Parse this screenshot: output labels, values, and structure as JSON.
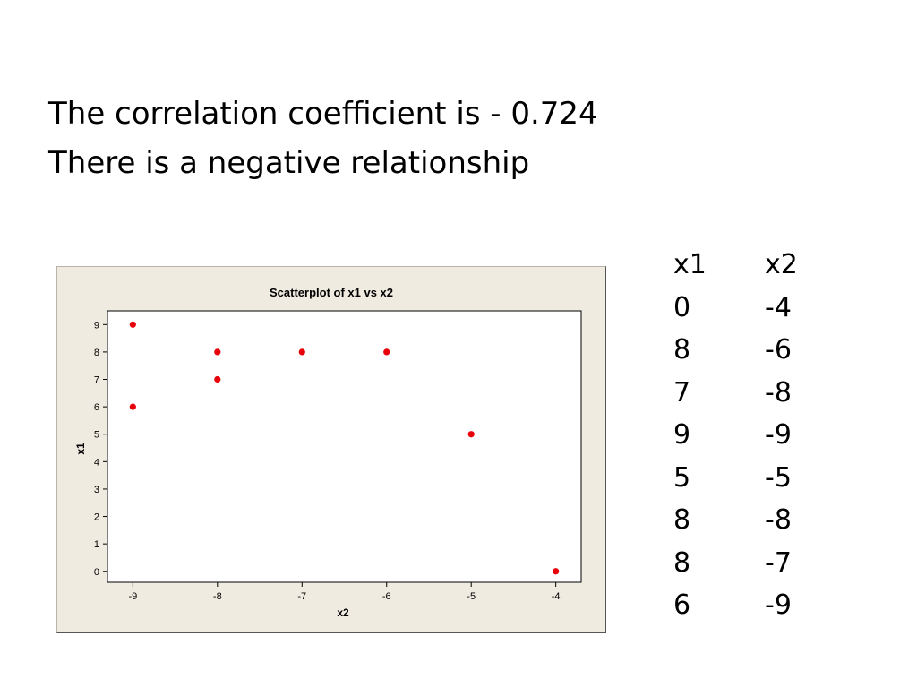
{
  "heading": {
    "line1": "The correlation coefficient is - 0.724",
    "line2": "There is a negative relationship"
  },
  "table": {
    "headers": [
      "x1",
      "x2"
    ],
    "rows": [
      [
        "0",
        "-4"
      ],
      [
        "8",
        "-6"
      ],
      [
        "7",
        "-8"
      ],
      [
        "9",
        "-9"
      ],
      [
        "5",
        "-5"
      ],
      [
        "8",
        "-8"
      ],
      [
        "8",
        "-7"
      ],
      [
        "6",
        "-9"
      ]
    ]
  },
  "chart_data": {
    "type": "scatter",
    "title": "Scatterplot of x1 vs x2",
    "xlabel": "x2",
    "ylabel": "x1",
    "xlim": [
      -9.3,
      -3.7
    ],
    "ylim": [
      -0.4,
      9.5
    ],
    "xticks": [
      -9,
      -8,
      -7,
      -6,
      -5,
      -4
    ],
    "yticks": [
      0,
      1,
      2,
      3,
      4,
      5,
      6,
      7,
      8,
      9
    ],
    "grid": false,
    "legend": "none",
    "point_color": "#e8000b",
    "frame_bg": "#efebe0",
    "plot_bg": "#ffffff",
    "points": [
      {
        "x": -4,
        "y": 0
      },
      {
        "x": -6,
        "y": 8
      },
      {
        "x": -8,
        "y": 7
      },
      {
        "x": -9,
        "y": 9
      },
      {
        "x": -5,
        "y": 5
      },
      {
        "x": -8,
        "y": 8
      },
      {
        "x": -7,
        "y": 8
      },
      {
        "x": -9,
        "y": 6
      }
    ]
  }
}
